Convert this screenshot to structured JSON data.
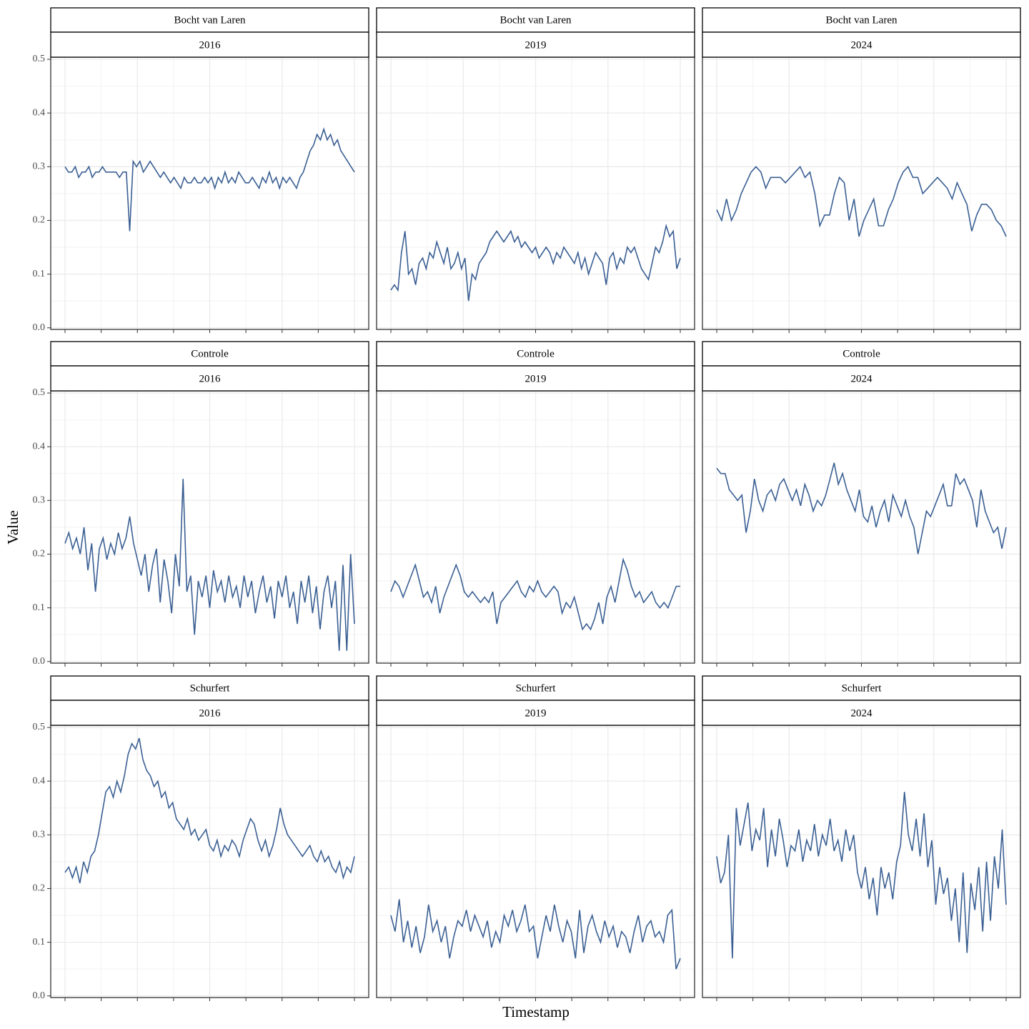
{
  "y_label": "Value",
  "x_label": "Timestamp",
  "ylim": [
    -0.003,
    0.504
  ],
  "yticks": [
    {
      "value": 0,
      "label": "0.0"
    },
    0.1,
    0.2,
    0.3,
    0.4,
    0.5
  ],
  "chart_data": [
    {
      "type": "line",
      "facet": "Bocht van Laren",
      "year": "2016",
      "color": "#3a5f93",
      "values": [
        0.3,
        0.29,
        0.29,
        0.3,
        0.28,
        0.29,
        0.29,
        0.3,
        0.28,
        0.29,
        0.29,
        0.3,
        0.29,
        0.29,
        0.29,
        0.29,
        0.28,
        0.29,
        0.29,
        0.18,
        0.31,
        0.3,
        0.31,
        0.29,
        0.3,
        0.31,
        0.3,
        0.29,
        0.28,
        0.29,
        0.28,
        0.27,
        0.28,
        0.27,
        0.26,
        0.28,
        0.27,
        0.27,
        0.28,
        0.27,
        0.27,
        0.28,
        0.27,
        0.28,
        0.26,
        0.28,
        0.27,
        0.29,
        0.27,
        0.28,
        0.27,
        0.29,
        0.28,
        0.27,
        0.27,
        0.28,
        0.27,
        0.26,
        0.28,
        0.27,
        0.29,
        0.27,
        0.28,
        0.26,
        0.28,
        0.27,
        0.28,
        0.27,
        0.26,
        0.28,
        0.29,
        0.31,
        0.33,
        0.34,
        0.36,
        0.35,
        0.37,
        0.35,
        0.36,
        0.34,
        0.35,
        0.33,
        0.32,
        0.31,
        0.3,
        0.29
      ]
    },
    {
      "type": "line",
      "facet": "Bocht van Laren",
      "year": "2019",
      "color": "#3a5f93",
      "values": [
        0.07,
        0.08,
        0.07,
        0.14,
        0.18,
        0.1,
        0.11,
        0.08,
        0.12,
        0.13,
        0.11,
        0.14,
        0.13,
        0.16,
        0.14,
        0.12,
        0.15,
        0.11,
        0.12,
        0.14,
        0.11,
        0.13,
        0.05,
        0.1,
        0.09,
        0.12,
        0.13,
        0.14,
        0.16,
        0.17,
        0.18,
        0.17,
        0.16,
        0.17,
        0.18,
        0.16,
        0.17,
        0.15,
        0.16,
        0.15,
        0.14,
        0.15,
        0.13,
        0.14,
        0.15,
        0.14,
        0.12,
        0.14,
        0.13,
        0.15,
        0.14,
        0.13,
        0.12,
        0.14,
        0.11,
        0.13,
        0.1,
        0.12,
        0.14,
        0.13,
        0.12,
        0.08,
        0.13,
        0.14,
        0.11,
        0.13,
        0.12,
        0.15,
        0.14,
        0.15,
        0.13,
        0.11,
        0.1,
        0.09,
        0.12,
        0.15,
        0.14,
        0.16,
        0.19,
        0.17,
        0.18,
        0.11,
        0.13
      ]
    },
    {
      "type": "line",
      "facet": "Bocht van Laren",
      "year": "2024",
      "color": "#3a5f93",
      "values": [
        0.22,
        0.2,
        0.24,
        0.2,
        0.22,
        0.25,
        0.27,
        0.29,
        0.3,
        0.29,
        0.26,
        0.28,
        0.28,
        0.28,
        0.27,
        0.28,
        0.29,
        0.3,
        0.28,
        0.29,
        0.25,
        0.19,
        0.21,
        0.21,
        0.25,
        0.28,
        0.27,
        0.2,
        0.24,
        0.17,
        0.2,
        0.22,
        0.24,
        0.19,
        0.19,
        0.22,
        0.24,
        0.27,
        0.29,
        0.3,
        0.28,
        0.28,
        0.25,
        0.26,
        0.27,
        0.28,
        0.27,
        0.26,
        0.24,
        0.27,
        0.25,
        0.23,
        0.18,
        0.21,
        0.23,
        0.23,
        0.22,
        0.2,
        0.19,
        0.17
      ]
    },
    {
      "type": "line",
      "facet": "Controle",
      "year": "2016",
      "color": "#3a5f93",
      "values": [
        0.22,
        0.24,
        0.21,
        0.23,
        0.2,
        0.25,
        0.17,
        0.22,
        0.13,
        0.21,
        0.23,
        0.19,
        0.22,
        0.2,
        0.24,
        0.21,
        0.23,
        0.27,
        0.22,
        0.19,
        0.16,
        0.2,
        0.13,
        0.18,
        0.21,
        0.11,
        0.19,
        0.15,
        0.09,
        0.2,
        0.14,
        0.34,
        0.13,
        0.16,
        0.05,
        0.15,
        0.12,
        0.16,
        0.1,
        0.17,
        0.13,
        0.15,
        0.11,
        0.16,
        0.12,
        0.14,
        0.1,
        0.16,
        0.12,
        0.15,
        0.09,
        0.13,
        0.16,
        0.11,
        0.14,
        0.08,
        0.15,
        0.12,
        0.16,
        0.1,
        0.13,
        0.07,
        0.15,
        0.11,
        0.16,
        0.09,
        0.14,
        0.06,
        0.13,
        0.16,
        0.1,
        0.15,
        0.02,
        0.18,
        0.02,
        0.2,
        0.07
      ]
    },
    {
      "type": "line",
      "facet": "Controle",
      "year": "2019",
      "color": "#3a5f93",
      "values": [
        0.13,
        0.15,
        0.14,
        0.12,
        0.14,
        0.16,
        0.18,
        0.15,
        0.12,
        0.13,
        0.11,
        0.14,
        0.09,
        0.12,
        0.14,
        0.16,
        0.18,
        0.16,
        0.13,
        0.12,
        0.13,
        0.12,
        0.11,
        0.12,
        0.11,
        0.13,
        0.07,
        0.11,
        0.12,
        0.13,
        0.14,
        0.15,
        0.13,
        0.12,
        0.14,
        0.13,
        0.15,
        0.13,
        0.12,
        0.13,
        0.14,
        0.13,
        0.09,
        0.11,
        0.1,
        0.12,
        0.09,
        0.06,
        0.07,
        0.06,
        0.08,
        0.11,
        0.07,
        0.12,
        0.14,
        0.11,
        0.15,
        0.19,
        0.17,
        0.14,
        0.12,
        0.13,
        0.11,
        0.12,
        0.13,
        0.11,
        0.1,
        0.11,
        0.1,
        0.12,
        0.14,
        0.14
      ]
    },
    {
      "type": "line",
      "facet": "Controle",
      "year": "2024",
      "color": "#3a5f93",
      "values": [
        0.36,
        0.35,
        0.35,
        0.32,
        0.31,
        0.3,
        0.31,
        0.24,
        0.28,
        0.34,
        0.3,
        0.28,
        0.31,
        0.32,
        0.3,
        0.33,
        0.34,
        0.32,
        0.3,
        0.32,
        0.29,
        0.33,
        0.31,
        0.28,
        0.3,
        0.29,
        0.31,
        0.34,
        0.37,
        0.33,
        0.35,
        0.32,
        0.3,
        0.28,
        0.32,
        0.27,
        0.26,
        0.29,
        0.25,
        0.28,
        0.3,
        0.26,
        0.31,
        0.29,
        0.27,
        0.3,
        0.27,
        0.25,
        0.2,
        0.24,
        0.28,
        0.27,
        0.29,
        0.31,
        0.33,
        0.29,
        0.29,
        0.35,
        0.33,
        0.34,
        0.32,
        0.3,
        0.25,
        0.32,
        0.28,
        0.26,
        0.24,
        0.25,
        0.21,
        0.25
      ]
    },
    {
      "type": "line",
      "facet": "Schurfert",
      "year": "2016",
      "color": "#3a5f93",
      "values": [
        0.23,
        0.24,
        0.22,
        0.24,
        0.21,
        0.25,
        0.23,
        0.26,
        0.27,
        0.3,
        0.34,
        0.38,
        0.39,
        0.37,
        0.4,
        0.38,
        0.41,
        0.45,
        0.47,
        0.46,
        0.48,
        0.44,
        0.42,
        0.41,
        0.39,
        0.4,
        0.37,
        0.38,
        0.35,
        0.36,
        0.33,
        0.32,
        0.31,
        0.33,
        0.3,
        0.31,
        0.29,
        0.3,
        0.31,
        0.28,
        0.27,
        0.29,
        0.26,
        0.28,
        0.27,
        0.29,
        0.28,
        0.26,
        0.29,
        0.31,
        0.33,
        0.32,
        0.29,
        0.27,
        0.29,
        0.26,
        0.28,
        0.31,
        0.35,
        0.32,
        0.3,
        0.29,
        0.28,
        0.27,
        0.26,
        0.27,
        0.28,
        0.26,
        0.25,
        0.27,
        0.25,
        0.26,
        0.24,
        0.23,
        0.25,
        0.22,
        0.24,
        0.23,
        0.26
      ]
    },
    {
      "type": "line",
      "facet": "Schurfert",
      "year": "2019",
      "color": "#3a5f93",
      "values": [
        0.15,
        0.12,
        0.18,
        0.1,
        0.14,
        0.09,
        0.13,
        0.08,
        0.11,
        0.17,
        0.12,
        0.14,
        0.1,
        0.13,
        0.07,
        0.11,
        0.14,
        0.13,
        0.16,
        0.12,
        0.15,
        0.13,
        0.11,
        0.14,
        0.09,
        0.12,
        0.1,
        0.15,
        0.13,
        0.16,
        0.12,
        0.14,
        0.17,
        0.12,
        0.13,
        0.07,
        0.11,
        0.15,
        0.12,
        0.17,
        0.13,
        0.1,
        0.14,
        0.12,
        0.07,
        0.16,
        0.08,
        0.13,
        0.15,
        0.12,
        0.1,
        0.14,
        0.11,
        0.13,
        0.09,
        0.12,
        0.11,
        0.08,
        0.12,
        0.15,
        0.1,
        0.13,
        0.14,
        0.11,
        0.12,
        0.1,
        0.15,
        0.16,
        0.05,
        0.07
      ]
    },
    {
      "type": "line",
      "facet": "Schurfert",
      "year": "2024",
      "color": "#3a5f93",
      "values": [
        0.26,
        0.21,
        0.23,
        0.3,
        0.07,
        0.35,
        0.28,
        0.32,
        0.36,
        0.27,
        0.31,
        0.29,
        0.35,
        0.24,
        0.31,
        0.26,
        0.33,
        0.29,
        0.24,
        0.28,
        0.27,
        0.31,
        0.25,
        0.29,
        0.27,
        0.32,
        0.26,
        0.3,
        0.28,
        0.33,
        0.27,
        0.29,
        0.25,
        0.31,
        0.27,
        0.3,
        0.23,
        0.2,
        0.24,
        0.18,
        0.22,
        0.15,
        0.24,
        0.2,
        0.23,
        0.18,
        0.25,
        0.28,
        0.38,
        0.3,
        0.27,
        0.33,
        0.26,
        0.34,
        0.24,
        0.29,
        0.17,
        0.24,
        0.19,
        0.22,
        0.14,
        0.2,
        0.1,
        0.23,
        0.08,
        0.21,
        0.16,
        0.24,
        0.12,
        0.25,
        0.14,
        0.26,
        0.2,
        0.31,
        0.17
      ]
    }
  ]
}
